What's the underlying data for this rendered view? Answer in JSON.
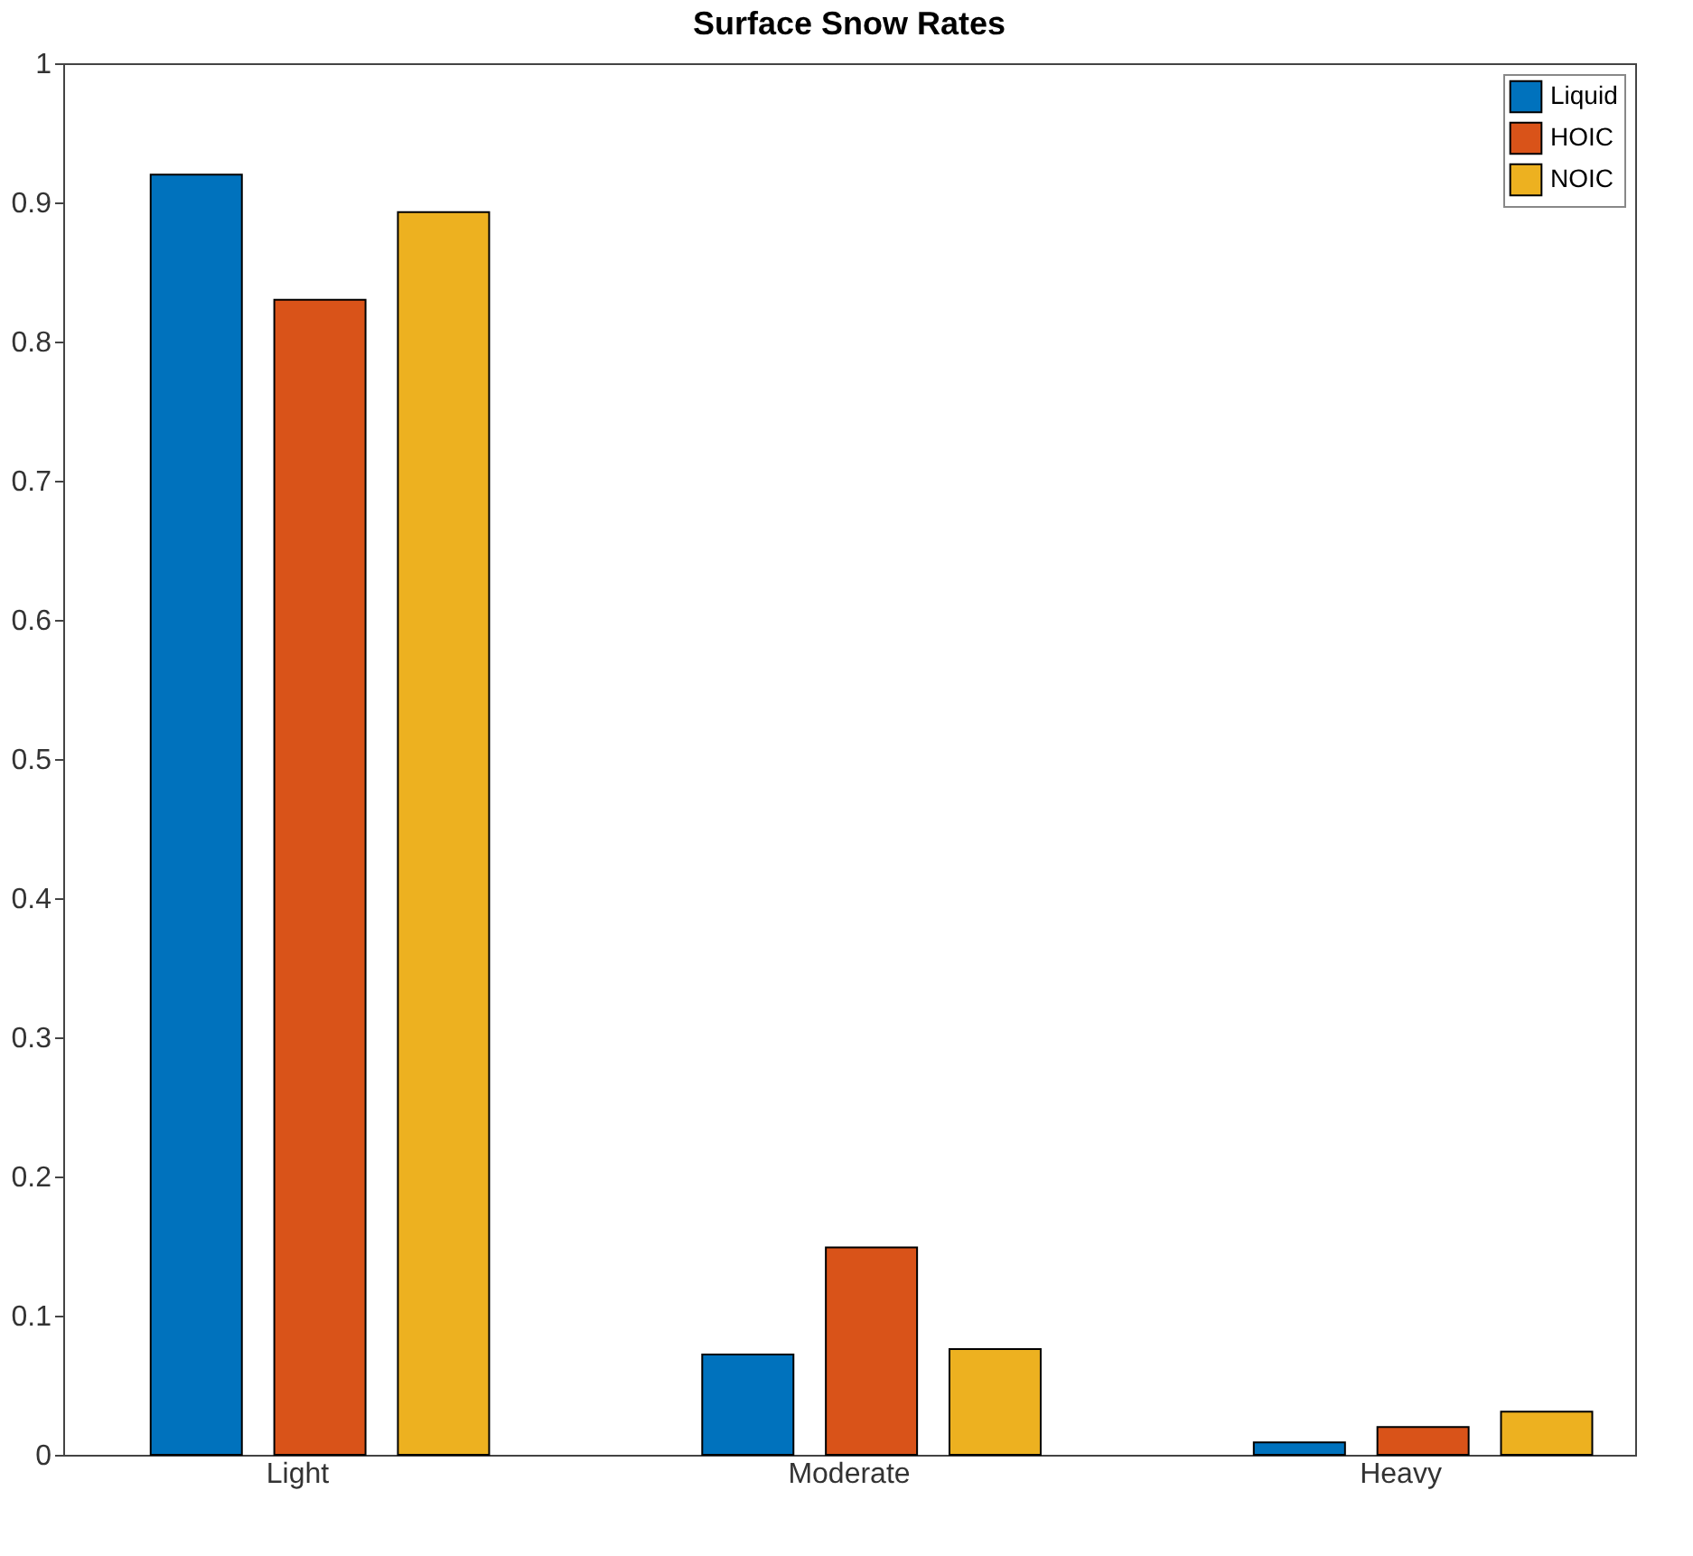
{
  "chart_data": {
    "type": "bar",
    "title": "Surface Snow Rates",
    "categories": [
      "Light",
      "Moderate",
      "Heavy"
    ],
    "series": [
      {
        "name": "Liquid",
        "color": "#0072bd",
        "values": [
          0.92,
          0.072,
          0.009
        ]
      },
      {
        "name": "HOIC",
        "color": "#d95319",
        "values": [
          0.83,
          0.149,
          0.02
        ]
      },
      {
        "name": "NOIC",
        "color": "#edb120",
        "values": [
          0.893,
          0.076,
          0.031
        ]
      }
    ],
    "ylim": [
      0,
      1
    ],
    "yticks": [
      0,
      0.1,
      0.2,
      0.3,
      0.4,
      0.5,
      0.6,
      0.7,
      0.8,
      0.9,
      1
    ],
    "grid": false,
    "legend": "top right"
  }
}
